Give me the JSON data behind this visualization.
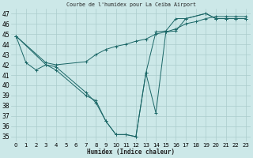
{
  "title": "Courbe de l'humidex pour La Ceiba Airport",
  "xlabel": "Humidex (Indice chaleur)",
  "bg_color": "#cce8e8",
  "grid_color": "#aacccc",
  "line_color": "#1a6666",
  "ylim": [
    34.5,
    47.5
  ],
  "xlim": [
    -0.5,
    23.5
  ],
  "yticks": [
    35,
    36,
    37,
    38,
    39,
    40,
    41,
    42,
    43,
    44,
    45,
    46,
    47
  ],
  "xticks": [
    0,
    1,
    2,
    3,
    4,
    5,
    6,
    7,
    8,
    9,
    10,
    11,
    12,
    13,
    14,
    15,
    16,
    17,
    18,
    19,
    20,
    21,
    22,
    23
  ],
  "line1_x": [
    0,
    1,
    2,
    3,
    4,
    7,
    8,
    9,
    10,
    11,
    12,
    13,
    14,
    15,
    16,
    17,
    19,
    20,
    21,
    22,
    23
  ],
  "line1_y": [
    44.8,
    42.2,
    41.5,
    42.0,
    41.5,
    39.0,
    38.5,
    36.5,
    35.2,
    35.2,
    35.0,
    41.2,
    37.3,
    45.2,
    45.3,
    46.5,
    47.0,
    46.5,
    46.5,
    46.5,
    46.5
  ],
  "line2_x": [
    0,
    3,
    4,
    7,
    8,
    9,
    10,
    11,
    12,
    13,
    14,
    15,
    16,
    17,
    19,
    20,
    21,
    22,
    23
  ],
  "line2_y": [
    44.8,
    42.0,
    41.8,
    39.3,
    38.3,
    36.5,
    35.2,
    35.2,
    35.0,
    41.2,
    45.2,
    45.3,
    46.5,
    46.5,
    47.0,
    46.5,
    46.5,
    46.5,
    46.5
  ],
  "line3_x": [
    0,
    3,
    4,
    7,
    8,
    9,
    10,
    11,
    12,
    13,
    14,
    15,
    16,
    17,
    18,
    19,
    20,
    21,
    22,
    23
  ],
  "line3_y": [
    44.8,
    42.2,
    42.0,
    42.3,
    43.0,
    43.5,
    43.8,
    44.0,
    44.3,
    44.5,
    45.0,
    45.2,
    45.5,
    46.0,
    46.2,
    46.5,
    46.7,
    46.7,
    46.7,
    46.7
  ]
}
